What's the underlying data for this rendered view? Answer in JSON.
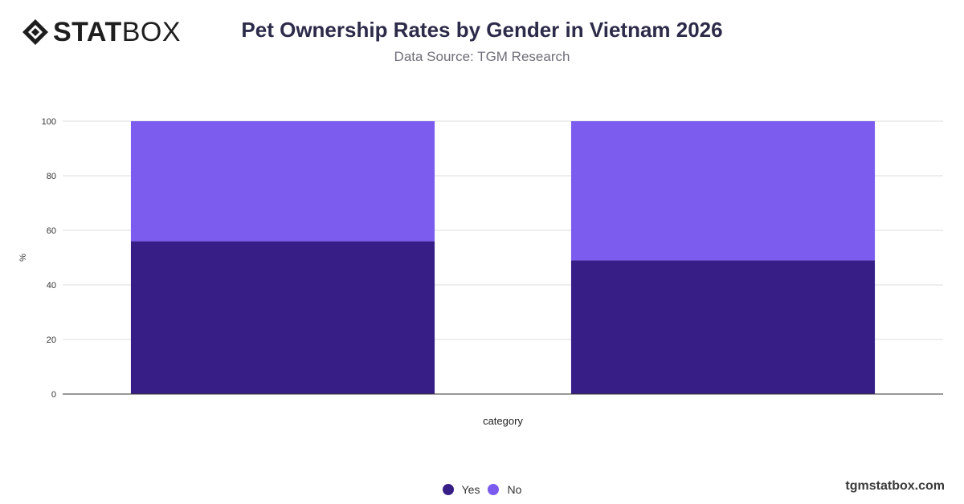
{
  "brand": {
    "logo_bold": "STAT",
    "logo_light": "BOX",
    "watermark": "tgmstatbox.com"
  },
  "chart_data": {
    "type": "bar",
    "stacked": true,
    "title": "Pet Ownership Rates by Gender in Vietnam 2026",
    "subtitle": "Data Source: TGM Research",
    "xlabel": "category",
    "ylabel": "%",
    "ylim": [
      0,
      100
    ],
    "yticks": [
      0,
      20,
      40,
      60,
      80,
      100
    ],
    "categories": [
      "",
      ""
    ],
    "series": [
      {
        "name": "Yes",
        "color": "#371E86",
        "values": [
          56,
          49
        ]
      },
      {
        "name": "No",
        "color": "#7B5CEE",
        "values": [
          44,
          51
        ]
      }
    ],
    "grid": true,
    "legend_position": "bottom-center"
  }
}
